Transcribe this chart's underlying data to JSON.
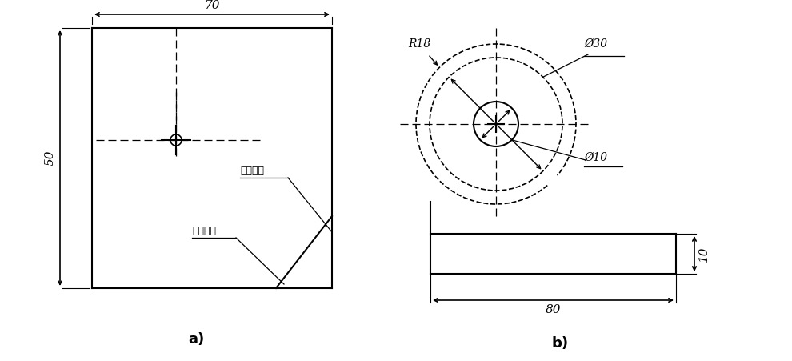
{
  "bg_color": "#ffffff",
  "line_color": "#000000",
  "label_a": "a)",
  "label_b": "b)",
  "dim_70": "70",
  "dim_50": "50",
  "dim_R18": "R18",
  "dim_phi30": "Ø30",
  "dim_phi10": "Ø10",
  "dim_80": "80",
  "dim_10": "10",
  "text_length_base": "长度基准",
  "text_height_base": "高度基准"
}
